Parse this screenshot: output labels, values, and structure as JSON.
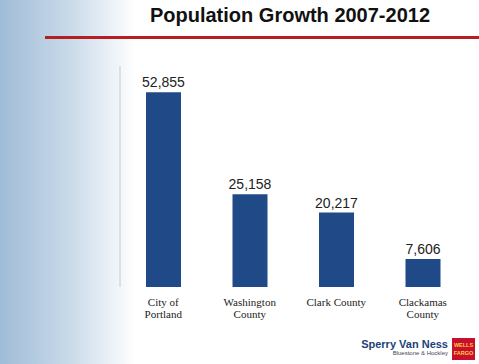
{
  "chart_data": {
    "type": "bar",
    "title": "Population Growth 2007-2012",
    "categories": [
      "City of Portland",
      "Washington County",
      "Clark County",
      "Clackamas County"
    ],
    "values": [
      52855,
      25158,
      20217,
      7606
    ],
    "color": "#1f4a87",
    "ylim": [
      0,
      60000
    ],
    "data_labels": true,
    "tick_labels": "x",
    "grid": false,
    "annotations": [
      "Sperry Van Ness",
      "Bluestone & Hockley",
      "WELLS FARGO"
    ]
  }
}
